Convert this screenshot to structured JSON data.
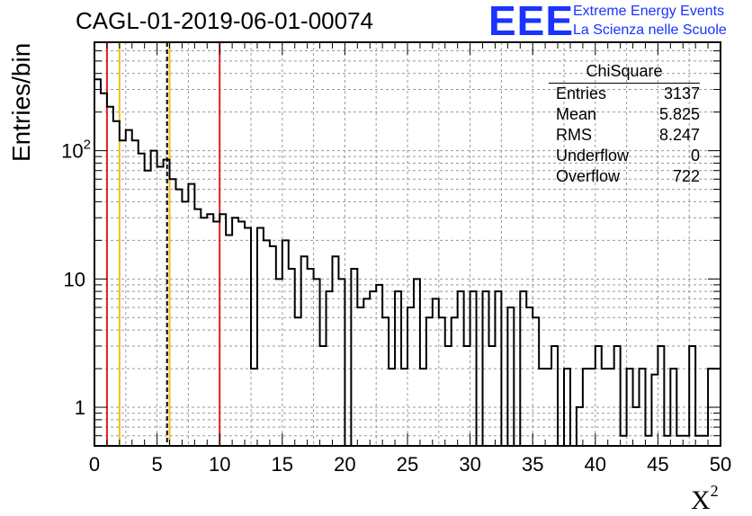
{
  "title": "CAGL-01-2019-06-01-00074",
  "logo": {
    "mark": "EEE",
    "line1": "Extreme Energy Events",
    "line2": "La Scienza nelle Scuole",
    "color": "#1a33ff"
  },
  "stats_box": {
    "name": "ChiSquare",
    "rows": [
      {
        "label": "Entries",
        "value": "3137"
      },
      {
        "label": "Mean",
        "value": "5.825"
      },
      {
        "label": "RMS",
        "value": "8.247"
      },
      {
        "label": "Underflow",
        "value": "0"
      },
      {
        "label": "Overflow",
        "value": "722"
      }
    ]
  },
  "chart_data": {
    "type": "bar",
    "histogram": true,
    "ylabel": "Entries/bin",
    "xlabel": "X",
    "xlabel_superscript": "2",
    "xlim": [
      0,
      50
    ],
    "ylim": [
      0.5,
      700
    ],
    "y_scale": "log",
    "grid": true,
    "bin_width": 0.5,
    "x_ticks": [
      "0",
      "5",
      "10",
      "15",
      "20",
      "25",
      "30",
      "35",
      "40",
      "45",
      "50"
    ],
    "y_ticks": [
      {
        "value": 1,
        "label": "1"
      },
      {
        "value": 10,
        "label": "10"
      },
      {
        "value": 100,
        "label": "10",
        "sup": "2"
      }
    ],
    "values": [
      360,
      280,
      220,
      170,
      120,
      145,
      120,
      95,
      70,
      100,
      75,
      85,
      60,
      50,
      40,
      55,
      35,
      30,
      32,
      28,
      32,
      22,
      30,
      28,
      25,
      2,
      25,
      20,
      18,
      10,
      20,
      12,
      5,
      15,
      12,
      10,
      3,
      8,
      15,
      10,
      0,
      12,
      6,
      7,
      8,
      9,
      5,
      2,
      8,
      2,
      6,
      10,
      2,
      5,
      7,
      5,
      3,
      5,
      8,
      3,
      8,
      0,
      8,
      3,
      8,
      0,
      6,
      0,
      8,
      6,
      5,
      2,
      2,
      3,
      0,
      2,
      0,
      1,
      2,
      2,
      3,
      2,
      2,
      3,
      0.6,
      2,
      1,
      2,
      0.6,
      1.8,
      3,
      0.6,
      2,
      0.6,
      0.6,
      3,
      0.6,
      0.6,
      2,
      2
    ],
    "vertical_lines": [
      {
        "x": 1,
        "color": "#e02020",
        "style": "solid"
      },
      {
        "x": 2,
        "color": "#f0c020",
        "style": "solid"
      },
      {
        "x": 5.8,
        "color": "#000000",
        "style": "dashed"
      },
      {
        "x": 6,
        "color": "#f0c020",
        "style": "solid"
      },
      {
        "x": 10,
        "color": "#e02020",
        "style": "solid"
      }
    ]
  }
}
